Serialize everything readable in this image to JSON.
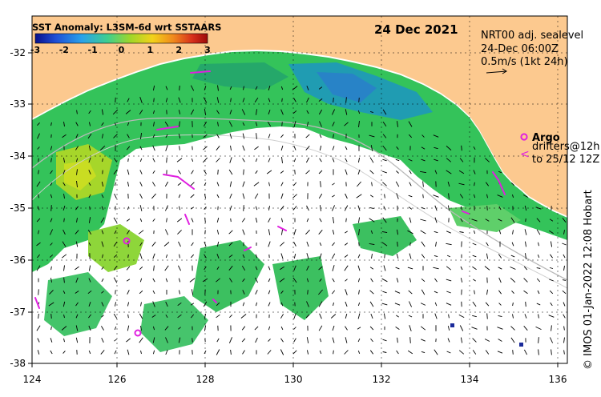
{
  "map": {
    "title": "SST Anomaly: L3SM-6d wrt SSTAARS",
    "date": "24 Dec 2021",
    "info": {
      "line1": "NRT00 adj. sealevel",
      "line2": "24-Dec 06:00Z",
      "line3": "0.5m/s (1kt 24h)"
    },
    "legend": {
      "argo": "Argo",
      "drifters_line1": "drifters@12h",
      "drifters_line2": "to 25/12 12Z"
    },
    "credit": "© IMOS 01-Jan-2022 12:08 Hobart",
    "colorbar": {
      "ticks": [
        "-3",
        "-2",
        "-1",
        "0",
        "1",
        "2",
        "3"
      ],
      "colors": [
        "#08108c",
        "#1f4fd6",
        "#2aa2ea",
        "#3fcf8f",
        "#9ed62a",
        "#f2d21a",
        "#f08a1c",
        "#d8301c",
        "#9c0a0a"
      ]
    },
    "x_ticks": [
      "124",
      "126",
      "128",
      "130",
      "132",
      "134",
      "136"
    ],
    "y_ticks": [
      "-32",
      "-33",
      "-34",
      "-35",
      "-36",
      "-37",
      "-38"
    ],
    "colors": {
      "land": "#fcc98f",
      "ocean": "#ffffff",
      "argo": "#e020e0",
      "drifter": "#e020e0"
    }
  }
}
